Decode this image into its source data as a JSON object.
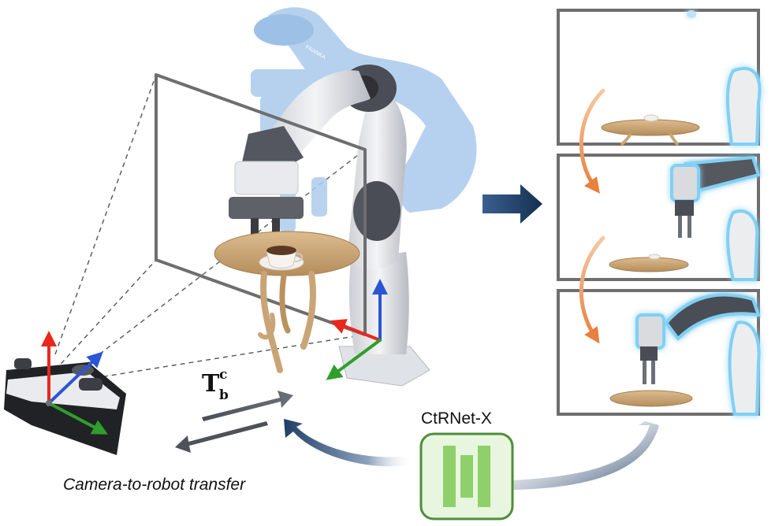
{
  "labels": {
    "caption": "Camera-to-robot transfer",
    "network_name": "CtRNet-X",
    "transform_symbol": "T",
    "transform_superscript": "c",
    "transform_subscript": "b",
    "robot_brand": "FRANKA"
  },
  "colors": {
    "axis_x": "#e8281e",
    "axis_y": "#2f9e2a",
    "axis_z": "#2b55d6",
    "robot_white": "#eef0f2",
    "robot_dark": "#4a4d55",
    "robot_ghost": "#a9c9ec",
    "table_wood": "#c9a576",
    "frame_gray": "#6e6e6e",
    "arrow_navy": "#1f3e66",
    "orange_arrow": "#e8803e",
    "network_green": "#8fd06a",
    "network_border": "#4e8d39",
    "glow": "#7fd0f5"
  },
  "icons": [
    "camera-icon",
    "robot-arm-icon",
    "table-icon",
    "coffee-cup-icon",
    "network-icon",
    "right-arrow-icon",
    "curved-arrow-icon"
  ],
  "panels": {
    "count": 3,
    "content": [
      "robot-arm-at-rest",
      "robot-arm-reaching",
      "robot-arm-grasping"
    ]
  }
}
